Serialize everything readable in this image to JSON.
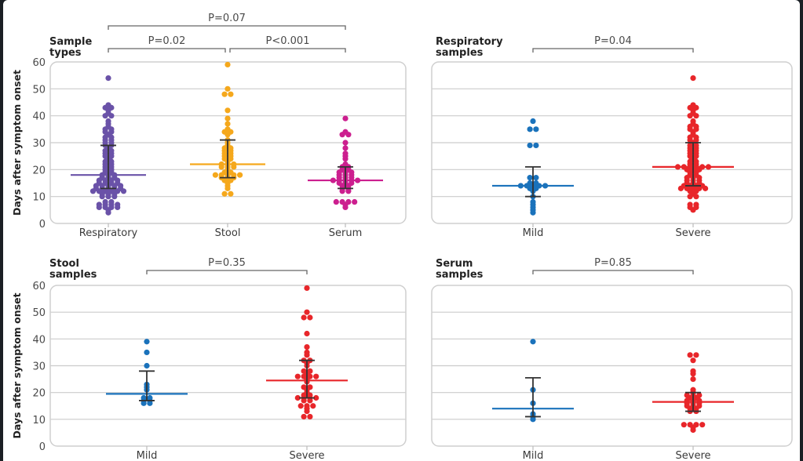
{
  "chart_data": [
    {
      "type": "scatter",
      "subtype": "beeswarm-with-median-and-iqr",
      "title": "Sample types",
      "ylabel": "Days after symptom onset",
      "ylim": [
        0,
        60
      ],
      "yticks": [
        0,
        10,
        20,
        30,
        40,
        50,
        60
      ],
      "show_ytick_labels": true,
      "grid": true,
      "categories": [
        "Respiratory",
        "Stool",
        "Serum"
      ],
      "series": [
        {
          "name": "Respiratory",
          "color": "#6a52a8",
          "median": 18,
          "iqr": [
            13,
            29
          ],
          "values": [
            54,
            44,
            43,
            43,
            42,
            41,
            40,
            40,
            38,
            37,
            36,
            35,
            35,
            34,
            34,
            33,
            32,
            32,
            31,
            31,
            30,
            30,
            29,
            29,
            28,
            27,
            27,
            26,
            26,
            25,
            25,
            24,
            23,
            23,
            22,
            22,
            21,
            21,
            20,
            20,
            19,
            19,
            18,
            18,
            18,
            17,
            17,
            17,
            16,
            16,
            16,
            16,
            15,
            15,
            15,
            15,
            14,
            14,
            14,
            14,
            14,
            13,
            13,
            13,
            13,
            13,
            12,
            12,
            12,
            12,
            12,
            12,
            11,
            11,
            11,
            10,
            10,
            10,
            8,
            8,
            7,
            7,
            7,
            7,
            6,
            6,
            6,
            6,
            5,
            4
          ]
        },
        {
          "name": "Stool",
          "color": "#f5a81c",
          "median": 22,
          "iqr": [
            17,
            31
          ],
          "values": [
            59,
            50,
            48,
            48,
            42,
            39,
            37,
            35,
            34,
            34,
            33,
            31,
            30,
            29,
            28,
            28,
            27,
            27,
            26,
            26,
            25,
            25,
            24,
            24,
            23,
            22,
            22,
            22,
            21,
            21,
            21,
            20,
            19,
            19,
            18,
            18,
            18,
            18,
            18,
            17,
            17,
            17,
            16,
            16,
            15,
            14,
            13,
            11,
            11
          ]
        },
        {
          "name": "Serum",
          "color": "#cc1f8f",
          "median": 16,
          "iqr": [
            13,
            21
          ],
          "values": [
            39,
            34,
            33,
            33,
            30,
            28,
            26,
            25,
            24,
            22,
            21,
            21,
            20,
            20,
            19,
            19,
            19,
            18,
            18,
            18,
            17,
            17,
            17,
            16,
            16,
            16,
            16,
            16,
            15,
            15,
            15,
            14,
            14,
            13,
            13,
            12,
            12,
            8,
            8,
            8,
            8,
            7,
            6
          ]
        }
      ],
      "comparisons": [
        {
          "between": [
            "Respiratory",
            "Serum"
          ],
          "label": "P=0.07"
        },
        {
          "between": [
            "Respiratory",
            "Stool"
          ],
          "label": "P=0.02"
        },
        {
          "between": [
            "Stool",
            "Serum"
          ],
          "label": "P<0.001"
        }
      ]
    },
    {
      "type": "scatter",
      "subtype": "beeswarm-with-median-and-iqr",
      "title": "Respiratory samples",
      "ylabel": "",
      "ylim": [
        0,
        60
      ],
      "yticks": [
        0,
        10,
        20,
        30,
        40,
        50,
        60
      ],
      "show_ytick_labels": false,
      "grid": true,
      "categories": [
        "Mild",
        "Severe"
      ],
      "series": [
        {
          "name": "Mild",
          "color": "#1a72bb",
          "median": 14,
          "iqr": [
            10,
            21
          ],
          "values": [
            38,
            35,
            35,
            29,
            29,
            17,
            17,
            15,
            15,
            14,
            14,
            14,
            14,
            14,
            13,
            13,
            12,
            10,
            8,
            7,
            6,
            5,
            4
          ]
        },
        {
          "name": "Severe",
          "color": "#e8262a",
          "median": 21,
          "iqr": [
            14,
            30
          ],
          "values": [
            54,
            44,
            43,
            43,
            42,
            41,
            40,
            40,
            38,
            37,
            36,
            36,
            35,
            35,
            34,
            33,
            32,
            32,
            31,
            31,
            30,
            29,
            29,
            28,
            28,
            27,
            27,
            26,
            26,
            25,
            25,
            24,
            23,
            23,
            22,
            22,
            21,
            21,
            21,
            21,
            21,
            21,
            20,
            20,
            20,
            19,
            19,
            18,
            18,
            17,
            17,
            17,
            16,
            16,
            16,
            15,
            15,
            15,
            14,
            14,
            14,
            14,
            13,
            13,
            13,
            13,
            13,
            12,
            12,
            11,
            10,
            10,
            7,
            7,
            6,
            6,
            5
          ]
        }
      ],
      "comparisons": [
        {
          "between": [
            "Mild",
            "Severe"
          ],
          "label": "P=0.04"
        }
      ]
    },
    {
      "type": "scatter",
      "subtype": "beeswarm-with-median-and-iqr",
      "title": "Stool samples",
      "ylabel": "Days after symptom onset",
      "ylim": [
        0,
        60
      ],
      "yticks": [
        0,
        10,
        20,
        30,
        40,
        50,
        60
      ],
      "show_ytick_labels": true,
      "grid": true,
      "categories": [
        "Mild",
        "Severe"
      ],
      "series": [
        {
          "name": "Mild",
          "color": "#1a72bb",
          "median": 19.5,
          "iqr": [
            17,
            28
          ],
          "values": [
            39,
            35,
            30,
            23,
            22,
            21,
            18,
            18,
            17,
            17,
            16,
            16
          ]
        },
        {
          "name": "Severe",
          "color": "#e8262a",
          "median": 24.5,
          "iqr": [
            18,
            32
          ],
          "values": [
            59,
            50,
            48,
            48,
            42,
            37,
            35,
            34,
            32,
            32,
            31,
            30,
            28,
            28,
            27,
            26,
            26,
            26,
            26,
            25,
            24,
            22,
            22,
            21,
            20,
            19,
            19,
            18,
            18,
            18,
            18,
            17,
            17,
            15,
            15,
            15,
            14,
            13,
            11,
            11
          ]
        }
      ],
      "comparisons": [
        {
          "between": [
            "Mild",
            "Severe"
          ],
          "label": "P=0.35"
        }
      ]
    },
    {
      "type": "scatter",
      "subtype": "beeswarm-with-median-and-iqr",
      "title": "Serum samples",
      "ylabel": "",
      "ylim": [
        0,
        60
      ],
      "yticks": [
        0,
        10,
        20,
        30,
        40,
        50,
        60
      ],
      "show_ytick_labels": false,
      "grid": true,
      "categories": [
        "Mild",
        "Severe"
      ],
      "series": [
        {
          "name": "Mild",
          "color": "#1a72bb",
          "median": 14,
          "iqr": [
            11,
            25.5
          ],
          "values": [
            39,
            21,
            16,
            12,
            11,
            10
          ]
        },
        {
          "name": "Severe",
          "color": "#e8262a",
          "median": 16.5,
          "iqr": [
            13,
            20
          ],
          "values": [
            34,
            34,
            32,
            28,
            27,
            25,
            21,
            20,
            19,
            19,
            19,
            18,
            18,
            17,
            17,
            17,
            16,
            16,
            16,
            15,
            15,
            15,
            14,
            14,
            13,
            13,
            8,
            8,
            8,
            8,
            7,
            6
          ]
        }
      ],
      "comparisons": [
        {
          "between": [
            "Mild",
            "Severe"
          ],
          "label": "P=0.85"
        }
      ]
    }
  ]
}
